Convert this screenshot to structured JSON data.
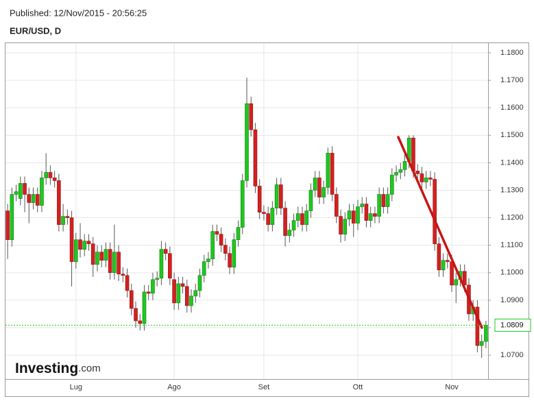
{
  "chart_data": {
    "type": "candlestick",
    "published": "Published: 12/Nov/2015 - 20:56:25",
    "title": "EUR/USD, D",
    "logo": {
      "name": "Investing",
      "suffix": ".com"
    },
    "up_color": "#1ec81e",
    "down_color": "#d42020",
    "grid": true,
    "ylim": [
      1.0613,
      1.1835
    ],
    "yticks": [
      {
        "value": 1.07,
        "label": "1.0700"
      },
      {
        "value": 1.08,
        "label": "1.0800"
      },
      {
        "value": 1.09,
        "label": "1.0900"
      },
      {
        "value": 1.1,
        "label": "1.1000"
      },
      {
        "value": 1.11,
        "label": "1.1100"
      },
      {
        "value": 1.12,
        "label": "1.1200"
      },
      {
        "value": 1.13,
        "label": "1.1300"
      },
      {
        "value": 1.14,
        "label": "1.1400"
      },
      {
        "value": 1.15,
        "label": "1.1500"
      },
      {
        "value": 1.16,
        "label": "1.1600"
      },
      {
        "value": 1.17,
        "label": "1.1700"
      },
      {
        "value": 1.18,
        "label": "1.1800"
      }
    ],
    "last_price": 1.0809,
    "categories": [
      null,
      null,
      null,
      null,
      null,
      null,
      null,
      null,
      null,
      null,
      null,
      null,
      null,
      null,
      null,
      null,
      "Lug",
      null,
      null,
      null,
      null,
      null,
      null,
      null,
      null,
      null,
      null,
      null,
      null,
      null,
      null,
      null,
      null,
      null,
      null,
      null,
      null,
      null,
      null,
      "Ago",
      null,
      null,
      null,
      null,
      null,
      null,
      null,
      null,
      null,
      null,
      null,
      null,
      null,
      null,
      null,
      null,
      null,
      null,
      null,
      null,
      "Set",
      null,
      null,
      null,
      null,
      null,
      null,
      null,
      null,
      null,
      null,
      null,
      null,
      null,
      null,
      null,
      null,
      null,
      null,
      null,
      null,
      null,
      "Ott",
      null,
      null,
      null,
      null,
      null,
      null,
      null,
      null,
      null,
      null,
      null,
      null,
      null,
      null,
      null,
      null,
      null,
      null,
      null,
      null,
      null,
      "Nov",
      null,
      null,
      null,
      null,
      null,
      null,
      null,
      null
    ],
    "open": [
      1.1225,
      1.112,
      1.1285,
      1.127,
      1.1325,
      1.1285,
      1.1255,
      1.1285,
      1.1245,
      1.1345,
      1.1365,
      1.1345,
      1.1335,
      1.1175,
      1.1205,
      1.12,
      1.104,
      1.112,
      1.1085,
      1.1115,
      1.1105,
      1.103,
      1.1075,
      1.1045,
      1.1085,
      1.1,
      1.1075,
      1.0995,
      1.099,
      1.0935,
      1.087,
      1.0825,
      1.0815,
      1.093,
      1.0925,
      1.0975,
      1.098,
      1.1085,
      1.107,
      1.0975,
      1.089,
      1.096,
      1.095,
      1.088,
      1.0915,
      1.0935,
      1.099,
      1.104,
      1.105,
      1.115,
      1.114,
      1.11,
      1.107,
      1.102,
      1.112,
      1.1165,
      1.1335,
      1.1615,
      1.152,
      1.1315,
      1.122,
      1.1215,
      1.1175,
      1.1235,
      1.132,
      1.1235,
      1.1135,
      1.1155,
      1.119,
      1.1215,
      1.1175,
      1.1225,
      1.13,
      1.1345,
      1.1275,
      1.131,
      1.1435,
      1.1285,
      1.1205,
      1.114,
      1.1195,
      1.1225,
      1.118,
      1.124,
      1.125,
      1.119,
      1.1215,
      1.1205,
      1.1285,
      1.124,
      1.1285,
      1.1355,
      1.1365,
      1.1375,
      1.1405,
      1.149,
      1.137,
      1.136,
      1.133,
      1.1345,
      1.134,
      1.1105,
      1.101,
      1.1045,
      1.104,
      1.0955,
      1.0975,
      1.1005,
      1.0955,
      1.085,
      1.0875,
      1.0735,
      1.075
    ],
    "high": [
      1.125,
      1.131,
      1.132,
      1.135,
      1.135,
      1.131,
      1.131,
      1.131,
      1.137,
      1.1435,
      1.139,
      1.137,
      1.136,
      1.125,
      1.123,
      1.1225,
      1.1145,
      1.118,
      1.114,
      1.114,
      1.113,
      1.11,
      1.11,
      1.111,
      1.111,
      1.1175,
      1.11,
      1.102,
      1.1015,
      1.096,
      1.0895,
      1.085,
      1.0955,
      1.0955,
      1.1,
      1.1005,
      1.1115,
      1.111,
      1.1095,
      1.1,
      1.0985,
      1.0985,
      1.0975,
      1.094,
      1.096,
      1.1015,
      1.1065,
      1.1075,
      1.1175,
      1.1175,
      1.1165,
      1.1125,
      1.1095,
      1.1145,
      1.119,
      1.136,
      1.171,
      1.164,
      1.1545,
      1.134,
      1.1245,
      1.124,
      1.126,
      1.1345,
      1.1345,
      1.126,
      1.118,
      1.1215,
      1.124,
      1.124,
      1.125,
      1.1325,
      1.137,
      1.137,
      1.1335,
      1.1455,
      1.146,
      1.131,
      1.123,
      1.122,
      1.125,
      1.125,
      1.1265,
      1.1275,
      1.1275,
      1.124,
      1.124,
      1.131,
      1.131,
      1.131,
      1.138,
      1.139,
      1.14,
      1.143,
      1.15,
      1.15,
      1.1395,
      1.1385,
      1.137,
      1.137,
      1.1365,
      1.113,
      1.107,
      1.107,
      1.1065,
      1.1,
      1.103,
      1.103,
      1.098,
      1.09,
      1.09,
      1.0775,
      1.0825
    ],
    "low": [
      1.105,
      1.1095,
      1.126,
      1.1245,
      1.122,
      1.118,
      1.123,
      1.122,
      1.122,
      1.132,
      1.132,
      1.131,
      1.115,
      1.115,
      1.1175,
      1.095,
      1.1015,
      1.1055,
      1.106,
      1.108,
      1.0985,
      1.1005,
      1.102,
      1.102,
      1.0975,
      1.0975,
      1.097,
      1.0965,
      1.091,
      1.0845,
      1.08,
      1.079,
      1.079,
      1.09,
      1.09,
      1.095,
      1.0955,
      1.1045,
      1.0955,
      1.0865,
      1.0865,
      1.0925,
      1.0855,
      1.0855,
      1.089,
      1.091,
      1.0965,
      1.1015,
      1.1025,
      1.1115,
      1.1075,
      1.1045,
      1.0995,
      1.0995,
      1.1095,
      1.114,
      1.131,
      1.1495,
      1.129,
      1.1195,
      1.119,
      1.115,
      1.115,
      1.121,
      1.121,
      1.1095,
      1.111,
      1.113,
      1.1165,
      1.115,
      1.115,
      1.12,
      1.1275,
      1.125,
      1.125,
      1.1285,
      1.126,
      1.118,
      1.111,
      1.1115,
      1.117,
      1.113,
      1.1155,
      1.1215,
      1.1165,
      1.1165,
      1.118,
      1.118,
      1.1215,
      1.1215,
      1.126,
      1.133,
      1.134,
      1.135,
      1.138,
      1.1345,
      1.1335,
      1.1305,
      1.1305,
      1.1315,
      1.108,
      1.0985,
      1.0985,
      1.1015,
      1.093,
      1.089,
      1.095,
      1.093,
      1.0825,
      1.0825,
      1.071,
      1.069,
      1.0725
    ],
    "close": [
      1.112,
      1.1285,
      1.1295,
      1.1325,
      1.1285,
      1.1255,
      1.1285,
      1.1245,
      1.1345,
      1.1365,
      1.1345,
      1.1335,
      1.1175,
      1.1205,
      1.12,
      1.104,
      1.112,
      1.1085,
      1.1115,
      1.1105,
      1.103,
      1.1075,
      1.1045,
      1.1085,
      1.1,
      1.1075,
      1.0995,
      1.099,
      1.0935,
      1.087,
      1.0825,
      1.0815,
      1.093,
      1.0925,
      1.0975,
      1.098,
      1.1085,
      1.107,
      1.098,
      1.089,
      1.096,
      1.095,
      1.088,
      1.0915,
      1.0935,
      1.099,
      1.104,
      1.105,
      1.115,
      1.114,
      1.11,
      1.107,
      1.102,
      1.112,
      1.1165,
      1.1335,
      1.1615,
      1.152,
      1.1315,
      1.122,
      1.1215,
      1.1175,
      1.1235,
      1.132,
      1.1235,
      1.1135,
      1.1155,
      1.119,
      1.1215,
      1.1175,
      1.1225,
      1.13,
      1.1345,
      1.1275,
      1.131,
      1.1435,
      1.1285,
      1.1205,
      1.114,
      1.1195,
      1.1225,
      1.118,
      1.124,
      1.125,
      1.119,
      1.1215,
      1.1205,
      1.1285,
      1.124,
      1.1285,
      1.1355,
      1.1365,
      1.1375,
      1.1405,
      1.149,
      1.137,
      1.136,
      1.133,
      1.1345,
      1.134,
      1.1105,
      1.101,
      1.1045,
      1.104,
      1.0955,
      1.0975,
      1.1005,
      1.0955,
      1.085,
      1.0875,
      1.0735,
      1.075,
      1.0809
    ]
  }
}
